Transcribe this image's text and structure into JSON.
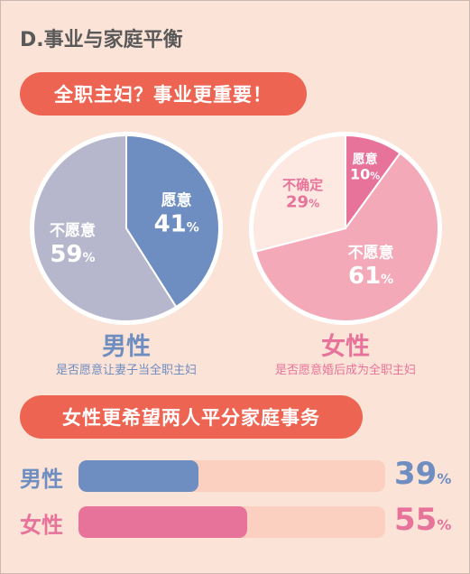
{
  "section_title": "D.事业与家庭平衡",
  "banner1": "全职主妇？事业更重要！",
  "banner2": "女性更希望两人平分家庭事务",
  "colors": {
    "background": "#fce3d7",
    "banner": "#ed6552",
    "male": "#6e8dc0",
    "male_light": "#b6b7cc",
    "female": "#e8739a",
    "female_mid": "#f4a9b8",
    "female_light": "#fde8e2",
    "bar_track": "#fbd0c1"
  },
  "chart_data": [
    {
      "type": "pie",
      "title": "男性",
      "subtitle": "是否愿意让妻子当全职主妇",
      "slices": [
        {
          "label": "愿意",
          "value": 41,
          "value_text": "41",
          "unit": "%"
        },
        {
          "label": "不愿意",
          "value": 59,
          "value_text": "59",
          "unit": "%"
        }
      ]
    },
    {
      "type": "pie",
      "title": "女性",
      "subtitle": "是否愿意婚后成为全职主妇",
      "slices": [
        {
          "label": "愿意",
          "value": 10,
          "value_text": "10",
          "unit": "%"
        },
        {
          "label": "不愿意",
          "value": 61,
          "value_text": "61",
          "unit": "%"
        },
        {
          "label": "不确定",
          "value": 29,
          "value_text": "29",
          "unit": "%"
        }
      ]
    },
    {
      "type": "bar",
      "title": "女性更希望两人平分家庭事务",
      "categories": [
        "男性",
        "女性"
      ],
      "values": [
        39,
        55
      ],
      "value_texts": [
        "39",
        "55"
      ],
      "unit": "%",
      "ylim": [
        0,
        100
      ]
    }
  ]
}
